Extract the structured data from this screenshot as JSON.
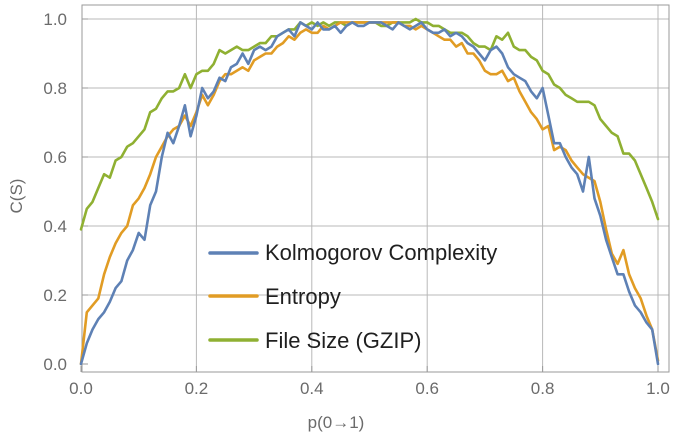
{
  "chart_data": {
    "type": "line",
    "title": "",
    "xlabel": "p(0→1)",
    "ylabel": "C(S)",
    "xlim": [
      0,
      1
    ],
    "ylim": [
      0,
      1
    ],
    "x_ticks": [
      "0.0",
      "0.2",
      "0.4",
      "0.6",
      "0.8",
      "1.0"
    ],
    "y_ticks": [
      "0.0",
      "0.2",
      "0.4",
      "0.6",
      "0.8",
      "1.0"
    ],
    "grid": true,
    "legend_position": "lower-center",
    "series": [
      {
        "name": "Kolmogorov Complexity",
        "color": "#5E81B5",
        "x": [
          0,
          0.01,
          0.02,
          0.03,
          0.04,
          0.05,
          0.06,
          0.07,
          0.08,
          0.09,
          0.1,
          0.11,
          0.12,
          0.13,
          0.14,
          0.15,
          0.16,
          0.17,
          0.18,
          0.19,
          0.2,
          0.21,
          0.22,
          0.23,
          0.24,
          0.25,
          0.26,
          0.27,
          0.28,
          0.29,
          0.3,
          0.31,
          0.32,
          0.33,
          0.34,
          0.35,
          0.36,
          0.37,
          0.38,
          0.39,
          0.4,
          0.41,
          0.42,
          0.43,
          0.44,
          0.45,
          0.46,
          0.47,
          0.48,
          0.49,
          0.5,
          0.51,
          0.52,
          0.53,
          0.54,
          0.55,
          0.56,
          0.57,
          0.58,
          0.59,
          0.6,
          0.61,
          0.62,
          0.63,
          0.64,
          0.65,
          0.66,
          0.67,
          0.68,
          0.69,
          0.7,
          0.71,
          0.72,
          0.73,
          0.74,
          0.75,
          0.76,
          0.77,
          0.78,
          0.79,
          0.8,
          0.81,
          0.82,
          0.83,
          0.84,
          0.85,
          0.86,
          0.87,
          0.88,
          0.89,
          0.9,
          0.91,
          0.92,
          0.93,
          0.94,
          0.95,
          0.96,
          0.97,
          0.98,
          0.99,
          1.0
        ],
        "y": [
          0,
          0.06,
          0.1,
          0.13,
          0.15,
          0.18,
          0.22,
          0.24,
          0.3,
          0.33,
          0.38,
          0.36,
          0.46,
          0.5,
          0.6,
          0.67,
          0.64,
          0.69,
          0.75,
          0.66,
          0.72,
          0.8,
          0.77,
          0.79,
          0.83,
          0.82,
          0.86,
          0.87,
          0.9,
          0.87,
          0.91,
          0.92,
          0.91,
          0.92,
          0.95,
          0.96,
          0.97,
          0.95,
          0.99,
          0.98,
          0.97,
          0.99,
          0.97,
          0.97,
          0.98,
          0.96,
          0.98,
          0.99,
          0.98,
          0.98,
          0.99,
          0.99,
          0.99,
          0.98,
          0.97,
          0.99,
          0.98,
          0.97,
          0.98,
          0.99,
          0.97,
          0.96,
          0.96,
          0.97,
          0.95,
          0.96,
          0.95,
          0.93,
          0.92,
          0.9,
          0.88,
          0.91,
          0.92,
          0.9,
          0.86,
          0.84,
          0.83,
          0.82,
          0.79,
          0.77,
          0.8,
          0.72,
          0.64,
          0.64,
          0.6,
          0.57,
          0.55,
          0.5,
          0.6,
          0.48,
          0.43,
          0.36,
          0.31,
          0.26,
          0.26,
          0.21,
          0.17,
          0.15,
          0.12,
          0.1,
          0.0
        ]
      },
      {
        "name": "Entropy",
        "color": "#E19C24",
        "x": [
          0,
          0.01,
          0.02,
          0.03,
          0.04,
          0.05,
          0.06,
          0.07,
          0.08,
          0.09,
          0.1,
          0.11,
          0.12,
          0.13,
          0.14,
          0.15,
          0.16,
          0.17,
          0.18,
          0.19,
          0.2,
          0.21,
          0.22,
          0.23,
          0.24,
          0.25,
          0.26,
          0.27,
          0.28,
          0.29,
          0.3,
          0.31,
          0.32,
          0.33,
          0.34,
          0.35,
          0.36,
          0.37,
          0.38,
          0.39,
          0.4,
          0.41,
          0.42,
          0.43,
          0.44,
          0.45,
          0.46,
          0.47,
          0.48,
          0.49,
          0.5,
          0.51,
          0.52,
          0.53,
          0.54,
          0.55,
          0.56,
          0.57,
          0.58,
          0.59,
          0.6,
          0.61,
          0.62,
          0.63,
          0.64,
          0.65,
          0.66,
          0.67,
          0.68,
          0.69,
          0.7,
          0.71,
          0.72,
          0.73,
          0.74,
          0.75,
          0.76,
          0.77,
          0.78,
          0.79,
          0.8,
          0.81,
          0.82,
          0.83,
          0.84,
          0.85,
          0.86,
          0.87,
          0.88,
          0.89,
          0.9,
          0.91,
          0.92,
          0.93,
          0.94,
          0.95,
          0.96,
          0.97,
          0.98,
          0.99,
          1.0
        ],
        "y": [
          0,
          0.15,
          0.17,
          0.19,
          0.26,
          0.31,
          0.35,
          0.38,
          0.4,
          0.46,
          0.48,
          0.51,
          0.55,
          0.6,
          0.63,
          0.66,
          0.68,
          0.69,
          0.72,
          0.69,
          0.73,
          0.78,
          0.75,
          0.78,
          0.82,
          0.84,
          0.84,
          0.85,
          0.86,
          0.85,
          0.88,
          0.89,
          0.9,
          0.9,
          0.92,
          0.93,
          0.95,
          0.94,
          0.96,
          0.97,
          0.96,
          0.96,
          0.98,
          0.97,
          0.98,
          0.99,
          0.99,
          0.99,
          0.99,
          0.99,
          0.99,
          0.99,
          0.99,
          0.99,
          0.99,
          0.99,
          0.98,
          0.98,
          0.97,
          0.98,
          0.97,
          0.96,
          0.95,
          0.94,
          0.94,
          0.92,
          0.93,
          0.9,
          0.9,
          0.88,
          0.85,
          0.84,
          0.84,
          0.85,
          0.82,
          0.83,
          0.79,
          0.76,
          0.73,
          0.71,
          0.68,
          0.69,
          0.62,
          0.63,
          0.62,
          0.59,
          0.57,
          0.55,
          0.54,
          0.53,
          0.47,
          0.39,
          0.32,
          0.29,
          0.33,
          0.26,
          0.22,
          0.19,
          0.14,
          0.1,
          0.01
        ]
      },
      {
        "name": "File Size (GZIP)",
        "color": "#8FB032",
        "x": [
          0,
          0.01,
          0.02,
          0.03,
          0.04,
          0.05,
          0.06,
          0.07,
          0.08,
          0.09,
          0.1,
          0.11,
          0.12,
          0.13,
          0.14,
          0.15,
          0.16,
          0.17,
          0.18,
          0.19,
          0.2,
          0.21,
          0.22,
          0.23,
          0.24,
          0.25,
          0.26,
          0.27,
          0.28,
          0.29,
          0.3,
          0.31,
          0.32,
          0.33,
          0.34,
          0.35,
          0.36,
          0.37,
          0.38,
          0.39,
          0.4,
          0.41,
          0.42,
          0.43,
          0.44,
          0.45,
          0.46,
          0.47,
          0.48,
          0.49,
          0.5,
          0.51,
          0.52,
          0.53,
          0.54,
          0.55,
          0.56,
          0.57,
          0.58,
          0.59,
          0.6,
          0.61,
          0.62,
          0.63,
          0.64,
          0.65,
          0.66,
          0.67,
          0.68,
          0.69,
          0.7,
          0.71,
          0.72,
          0.73,
          0.74,
          0.75,
          0.76,
          0.77,
          0.78,
          0.79,
          0.8,
          0.81,
          0.82,
          0.83,
          0.84,
          0.85,
          0.86,
          0.87,
          0.88,
          0.89,
          0.9,
          0.91,
          0.92,
          0.93,
          0.94,
          0.95,
          0.96,
          0.97,
          0.98,
          0.99,
          1.0
        ],
        "y": [
          0.39,
          0.45,
          0.47,
          0.51,
          0.55,
          0.54,
          0.59,
          0.6,
          0.63,
          0.64,
          0.66,
          0.68,
          0.73,
          0.74,
          0.77,
          0.79,
          0.79,
          0.8,
          0.84,
          0.8,
          0.84,
          0.85,
          0.85,
          0.87,
          0.91,
          0.9,
          0.91,
          0.92,
          0.91,
          0.91,
          0.92,
          0.93,
          0.93,
          0.95,
          0.95,
          0.96,
          0.97,
          0.97,
          0.99,
          0.98,
          0.99,
          0.98,
          0.99,
          0.98,
          0.99,
          0.99,
          0.98,
          0.99,
          0.99,
          0.99,
          0.99,
          0.99,
          0.98,
          0.98,
          0.99,
          0.99,
          0.99,
          0.99,
          1.0,
          0.99,
          0.99,
          0.98,
          0.98,
          0.97,
          0.96,
          0.96,
          0.96,
          0.95,
          0.93,
          0.92,
          0.92,
          0.91,
          0.95,
          0.94,
          0.96,
          0.92,
          0.91,
          0.91,
          0.89,
          0.88,
          0.85,
          0.84,
          0.81,
          0.8,
          0.78,
          0.77,
          0.76,
          0.76,
          0.76,
          0.75,
          0.71,
          0.69,
          0.67,
          0.66,
          0.61,
          0.61,
          0.59,
          0.55,
          0.51,
          0.47,
          0.42
        ]
      }
    ]
  }
}
